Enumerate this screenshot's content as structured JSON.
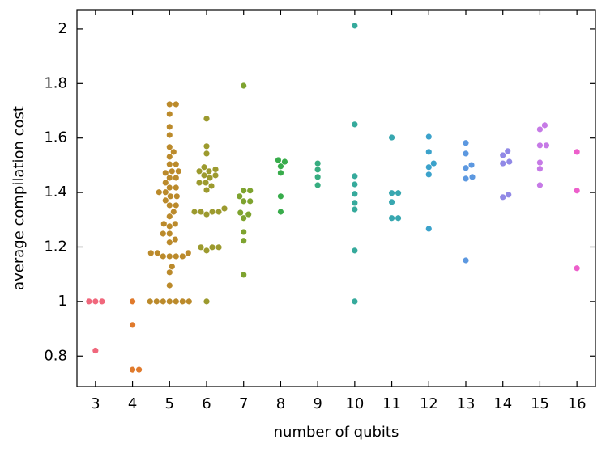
{
  "chart_data": {
    "type": "swarm",
    "xlabel": "number of qubits",
    "ylabel": "average compilation cost",
    "categories": [
      "3",
      "4",
      "5",
      "6",
      "7",
      "8",
      "9",
      "10",
      "11",
      "12",
      "13",
      "14",
      "15",
      "16"
    ],
    "colors": [
      "#f0677c",
      "#e07a2c",
      "#bb8a2b",
      "#9c9a2e",
      "#7ea32f",
      "#38ac4b",
      "#37ad80",
      "#36aa9c",
      "#38a7b0",
      "#3ba2cb",
      "#5c98e0",
      "#9189e6",
      "#c67ae6",
      "#ed5fcb"
    ],
    "values": [
      [
        1.0,
        1.0,
        1.0,
        0.82
      ],
      [
        1.0,
        0.914,
        0.75,
        0.75
      ],
      [
        1.724,
        1.724,
        1.688,
        1.641,
        1.611,
        1.567,
        1.549,
        1.531,
        1.504,
        1.504,
        1.478,
        1.478,
        1.472,
        1.454,
        1.454,
        1.436,
        1.418,
        1.418,
        1.401,
        1.401,
        1.386,
        1.386,
        1.371,
        1.353,
        1.353,
        1.329,
        1.312,
        1.285,
        1.285,
        1.276,
        1.249,
        1.249,
        1.228,
        1.217,
        1.178,
        1.178,
        1.178,
        1.166,
        1.166,
        1.166,
        1.166,
        1.128,
        1.107,
        1.059,
        1.0,
        1.0,
        1.0,
        1.0,
        1.0,
        1.0,
        1.0
      ],
      [
        1.671,
        1.57,
        1.543,
        1.493,
        1.485,
        1.478,
        1.478,
        1.463,
        1.463,
        1.454,
        1.436,
        1.436,
        1.424,
        1.409,
        1.341,
        1.329,
        1.329,
        1.329,
        1.329,
        1.32,
        1.199,
        1.199,
        1.199,
        1.187,
        1.0
      ],
      [
        1.792,
        1.407,
        1.407,
        1.386,
        1.368,
        1.368,
        1.326,
        1.32,
        1.306,
        1.255,
        1.223,
        1.098
      ],
      [
        1.519,
        1.513,
        1.496,
        1.472,
        1.386,
        1.329
      ],
      [
        1.507,
        1.484,
        1.457,
        1.427
      ],
      [
        2.012,
        1.65,
        1.46,
        1.43,
        1.395,
        1.362,
        1.338,
        1.187,
        1.0
      ],
      [
        1.602,
        1.398,
        1.398,
        1.365,
        1.306,
        1.306
      ],
      [
        1.605,
        1.549,
        1.507,
        1.493,
        1.466,
        1.267
      ],
      [
        1.582,
        1.543,
        1.501,
        1.49,
        1.457,
        1.451,
        1.151
      ],
      [
        1.552,
        1.537,
        1.513,
        1.507,
        1.392,
        1.383
      ],
      [
        1.647,
        1.632,
        1.573,
        1.573,
        1.51,
        1.487,
        1.427
      ],
      [
        1.549,
        1.407,
        1.122
      ]
    ],
    "ylim": [
      0.688,
      2.071
    ],
    "yticks": [
      0.8,
      1.0,
      1.2,
      1.4,
      1.6,
      1.8,
      2.0
    ]
  }
}
